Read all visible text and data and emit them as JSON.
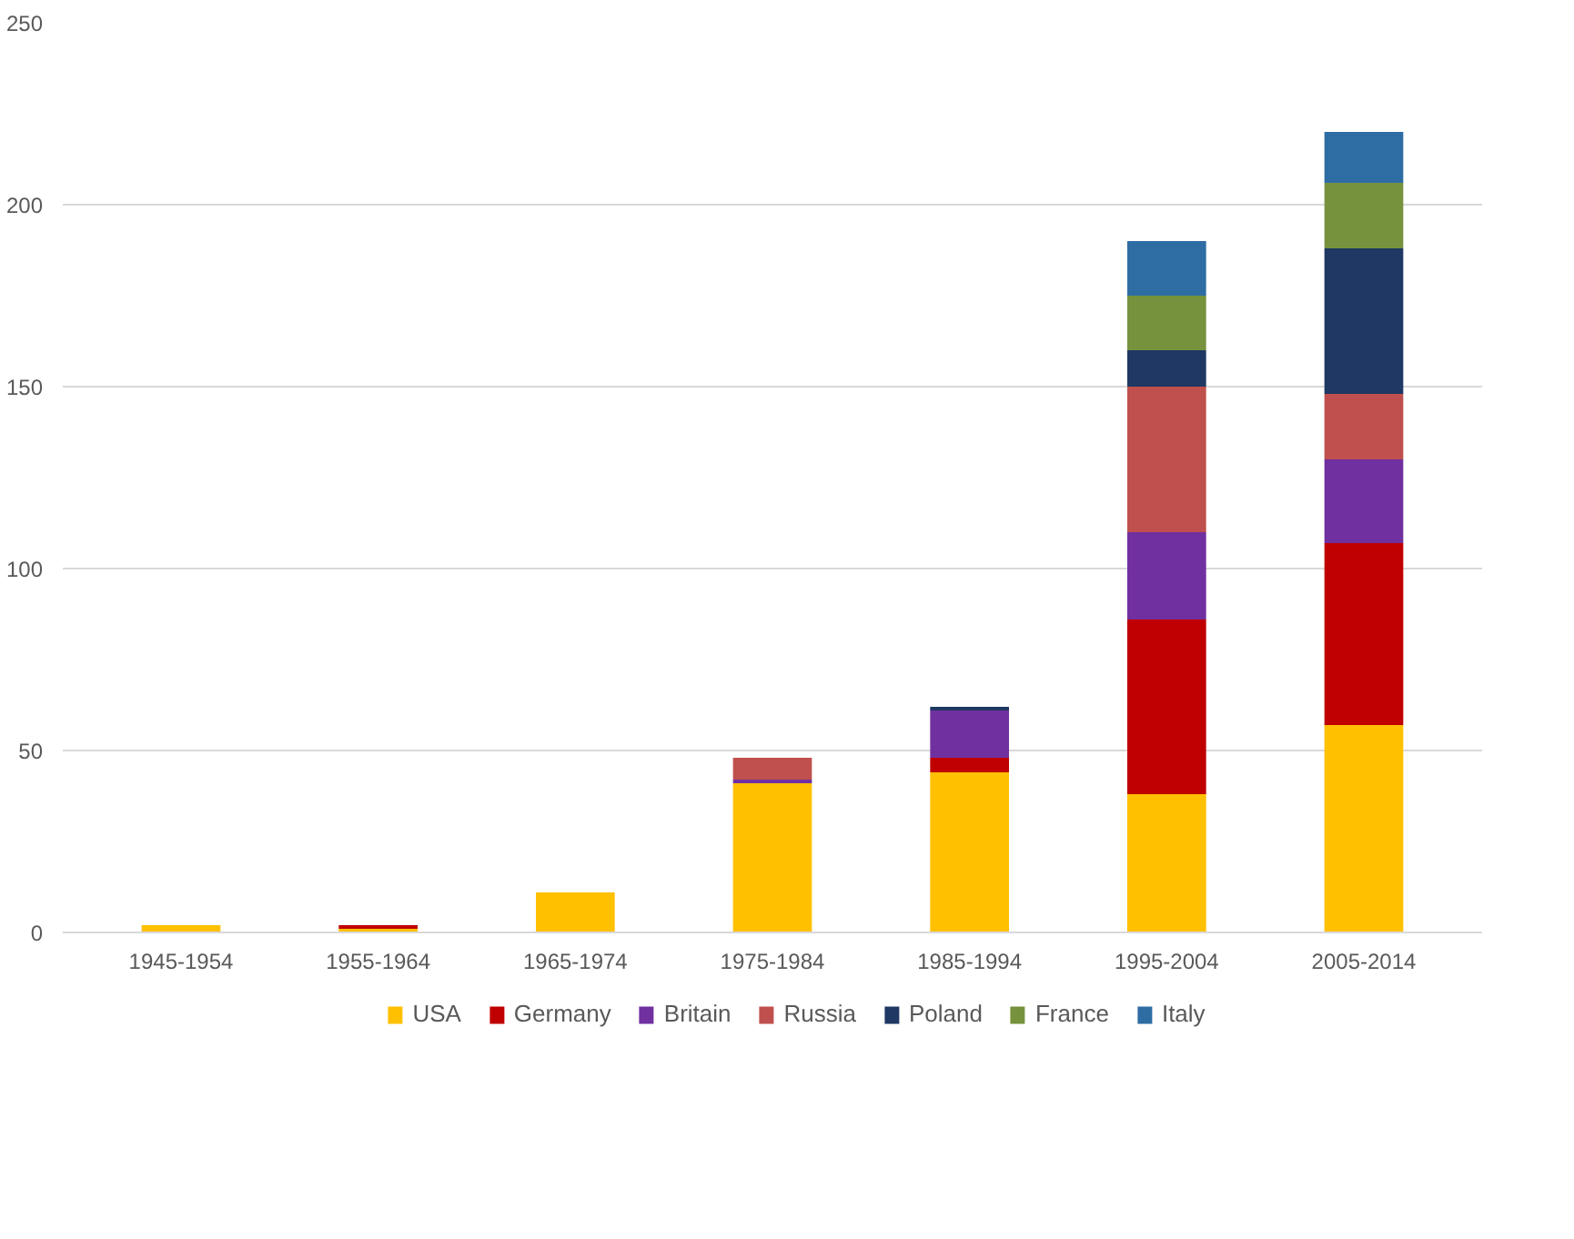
{
  "chart_data": {
    "type": "bar",
    "stacked": true,
    "categories": [
      "1945-1954",
      "1955-1964",
      "1965-1974",
      "1975-1984",
      "1985-1994",
      "1995-2004",
      "2005-2014"
    ],
    "series": [
      {
        "name": "USA",
        "color": "#ffc000",
        "values": [
          2,
          1,
          11,
          41,
          44,
          38,
          57
        ]
      },
      {
        "name": "Germany",
        "color": "#c00000",
        "values": [
          0,
          1,
          0,
          0,
          4,
          48,
          50
        ]
      },
      {
        "name": "Britain",
        "color": "#7030a0",
        "values": [
          0,
          0,
          0,
          1,
          13,
          24,
          23
        ]
      },
      {
        "name": "Russia",
        "color": "#c0504d",
        "values": [
          0,
          0,
          0,
          6,
          0,
          40,
          18
        ]
      },
      {
        "name": "Poland",
        "color": "#1f3864",
        "values": [
          0,
          0,
          0,
          0,
          1,
          10,
          40
        ]
      },
      {
        "name": "France",
        "color": "#76923c",
        "values": [
          0,
          0,
          0,
          0,
          0,
          15,
          18
        ]
      },
      {
        "name": "Italy",
        "color": "#2e6da4",
        "values": [
          0,
          0,
          0,
          0,
          0,
          15,
          14
        ]
      }
    ],
    "ylim": [
      0,
      250
    ],
    "yticks": [
      0,
      50,
      100,
      150,
      200,
      250
    ],
    "grid": "y",
    "legend": "bottom"
  }
}
